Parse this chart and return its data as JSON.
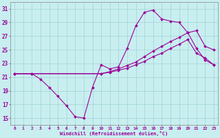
{
  "xlabel": "Windchill (Refroidissement éolien,°C)",
  "xlim": [
    -0.5,
    23.5
  ],
  "ylim": [
    14,
    32
  ],
  "yticks": [
    15,
    17,
    19,
    21,
    23,
    25,
    27,
    29,
    31
  ],
  "xticks": [
    0,
    1,
    2,
    3,
    4,
    5,
    6,
    7,
    8,
    9,
    10,
    11,
    12,
    13,
    14,
    15,
    16,
    17,
    18,
    19,
    20,
    21,
    22,
    23
  ],
  "bg_color": "#c8eef0",
  "grid_color": "#99cccc",
  "line_color": "#990099",
  "line1_x": [
    0,
    2,
    3,
    4,
    5,
    6,
    7,
    8,
    9,
    10,
    11,
    12,
    13,
    14,
    15,
    16,
    17,
    18,
    19,
    20,
    21,
    22,
    23
  ],
  "line1_y": [
    21.5,
    21.5,
    20.7,
    19.5,
    18.2,
    16.8,
    15.2,
    15.0,
    19.5,
    22.8,
    22.2,
    22.5,
    25.2,
    28.5,
    30.5,
    30.8,
    29.5,
    29.2,
    29.0,
    27.5,
    25.2,
    23.5,
    22.8
  ],
  "line2_x": [
    0,
    2,
    10,
    11,
    12,
    13,
    14,
    15,
    16,
    17,
    18,
    19,
    20,
    21,
    22,
    23
  ],
  "line2_y": [
    21.5,
    21.5,
    21.5,
    21.8,
    22.2,
    22.7,
    23.2,
    24.0,
    24.8,
    25.5,
    26.2,
    26.8,
    27.5,
    27.8,
    25.5,
    25.0
  ],
  "line3_x": [
    0,
    2,
    10,
    11,
    12,
    13,
    14,
    15,
    16,
    17,
    18,
    19,
    20,
    21,
    22,
    23
  ],
  "line3_y": [
    21.5,
    21.5,
    21.5,
    21.7,
    22.0,
    22.3,
    22.8,
    23.3,
    24.0,
    24.5,
    25.2,
    25.8,
    26.5,
    24.5,
    23.8,
    22.8
  ]
}
